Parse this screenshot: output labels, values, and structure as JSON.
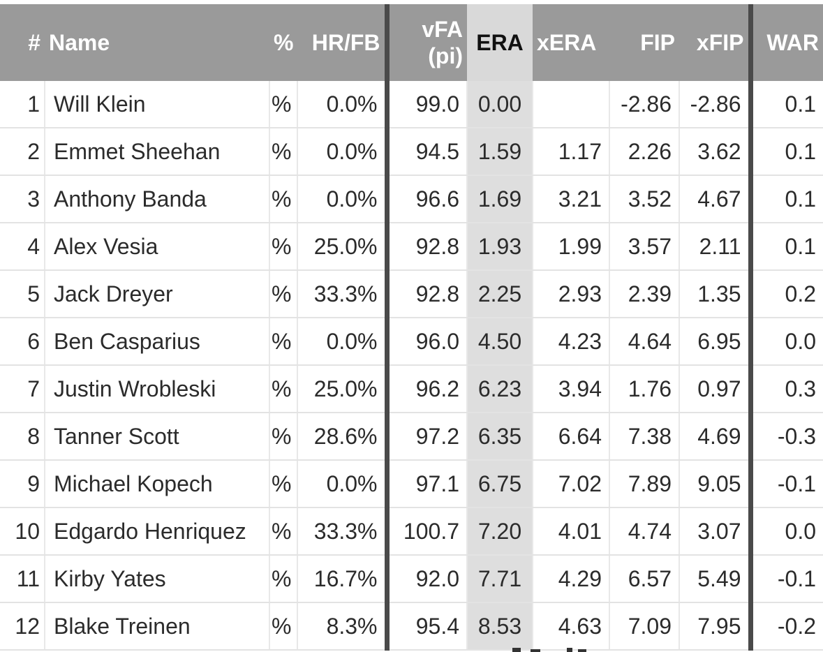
{
  "table": {
    "headers": {
      "rank": "#",
      "name": "Name",
      "pct": "%",
      "hrfb": "HR/FB",
      "vfa_line1": "vFA",
      "vfa_line2": "(pi)",
      "era": "ERA",
      "xera": "xERA",
      "fip": "FIP",
      "xfip": "xFIP",
      "war": "WAR"
    },
    "rows": [
      {
        "rank": "1",
        "name": "Will Klein",
        "pct": "%",
        "hrfb": "0.0%",
        "vfa": "99.0",
        "era": "0.00",
        "xera": "",
        "fip": "-2.86",
        "xfip": "-2.86",
        "war": "0.1"
      },
      {
        "rank": "2",
        "name": "Emmet Sheehan",
        "pct": "%",
        "hrfb": "0.0%",
        "vfa": "94.5",
        "era": "1.59",
        "xera": "1.17",
        "fip": "2.26",
        "xfip": "3.62",
        "war": "0.1"
      },
      {
        "rank": "3",
        "name": "Anthony Banda",
        "pct": "%",
        "hrfb": "0.0%",
        "vfa": "96.6",
        "era": "1.69",
        "xera": "3.21",
        "fip": "3.52",
        "xfip": "4.67",
        "war": "0.1"
      },
      {
        "rank": "4",
        "name": "Alex Vesia",
        "pct": "%",
        "hrfb": "25.0%",
        "vfa": "92.8",
        "era": "1.93",
        "xera": "1.99",
        "fip": "3.57",
        "xfip": "2.11",
        "war": "0.1"
      },
      {
        "rank": "5",
        "name": "Jack Dreyer",
        "pct": "%",
        "hrfb": "33.3%",
        "vfa": "92.8",
        "era": "2.25",
        "xera": "2.93",
        "fip": "2.39",
        "xfip": "1.35",
        "war": "0.2"
      },
      {
        "rank": "6",
        "name": "Ben Casparius",
        "pct": "%",
        "hrfb": "0.0%",
        "vfa": "96.0",
        "era": "4.50",
        "xera": "4.23",
        "fip": "4.64",
        "xfip": "6.95",
        "war": "0.0"
      },
      {
        "rank": "7",
        "name": "Justin Wrobleski",
        "pct": "%",
        "hrfb": "25.0%",
        "vfa": "96.2",
        "era": "6.23",
        "xera": "3.94",
        "fip": "1.76",
        "xfip": "0.97",
        "war": "0.3"
      },
      {
        "rank": "8",
        "name": "Tanner Scott",
        "pct": "%",
        "hrfb": "28.6%",
        "vfa": "97.2",
        "era": "6.35",
        "xera": "6.64",
        "fip": "7.38",
        "xfip": "4.69",
        "war": "-0.3"
      },
      {
        "rank": "9",
        "name": "Michael Kopech",
        "pct": "%",
        "hrfb": "0.0%",
        "vfa": "97.1",
        "era": "6.75",
        "xera": "7.02",
        "fip": "7.89",
        "xfip": "9.05",
        "war": "-0.1"
      },
      {
        "rank": "10",
        "name": "Edgardo Henriquez",
        "pct": "%",
        "hrfb": "33.3%",
        "vfa": "100.7",
        "era": "7.20",
        "xera": "4.01",
        "fip": "4.74",
        "xfip": "3.07",
        "war": "0.0"
      },
      {
        "rank": "11",
        "name": "Kirby Yates",
        "pct": "%",
        "hrfb": "16.7%",
        "vfa": "92.0",
        "era": "7.71",
        "xera": "4.29",
        "fip": "6.57",
        "xfip": "5.49",
        "war": "-0.1"
      },
      {
        "rank": "12",
        "name": "Blake Treinen",
        "pct": "%",
        "hrfb": "8.3%",
        "vfa": "95.4",
        "era": "8.53",
        "xera": "4.63",
        "fip": "7.09",
        "xfip": "7.95",
        "war": "-0.2"
      }
    ]
  },
  "colors": {
    "header_bg": "#9a9a9a",
    "header_text": "#ffffff",
    "sorted_column_bg": "#dedede",
    "group_divider": "#4a4a4a",
    "cell_text": "#2b2b2b"
  }
}
